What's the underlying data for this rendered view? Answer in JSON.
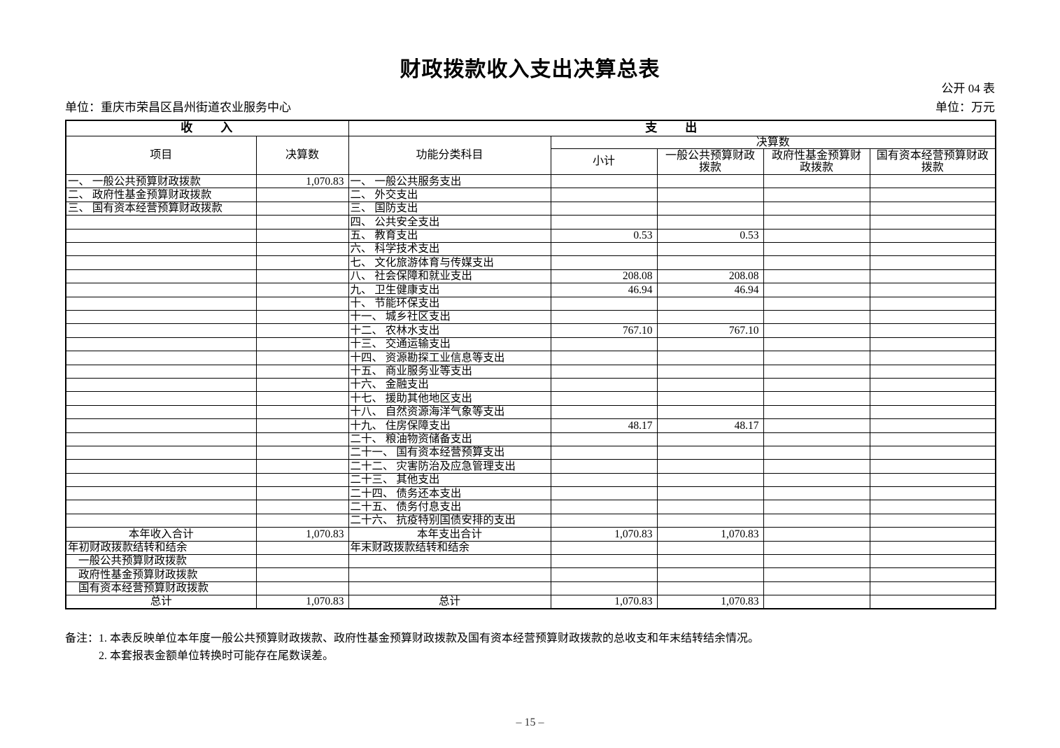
{
  "page": {
    "title": "财政拨款收入支出决算总表",
    "form_code": "公开 04 表",
    "org_unit": "单位：重庆市荣昌区昌州街道农业服务中心",
    "currency_unit": "单位：万元",
    "page_number": "– 15 –"
  },
  "table": {
    "sections": {
      "income": "收　　入",
      "expense": "支　　出"
    },
    "columns": {
      "project": "项目",
      "final_amount": "决算数",
      "functional_category": "功能分类科目",
      "final_amount_expense": "决算数",
      "subtotal": "小计",
      "general_public_budget": "一般公共预算财政拨款",
      "gov_fund_budget": "政府性基金预算财政拨款",
      "state_capital_budget": "国有资本经营预算财政拨款"
    },
    "rows": [
      {
        "income": "一、 一般公共预算财政拨款",
        "income_amount": "1,070.83",
        "expense": "一、 一般公共服务支出",
        "subtotal": "",
        "general": "",
        "gov_fund": "",
        "state_capital": ""
      },
      {
        "income": "二、 政府性基金预算财政拨款",
        "income_amount": "",
        "expense": "二、 外交支出",
        "subtotal": "",
        "general": "",
        "gov_fund": "",
        "state_capital": ""
      },
      {
        "income": "三、 国有资本经营预算财政拨款",
        "income_amount": "",
        "expense": "三、 国防支出",
        "subtotal": "",
        "general": "",
        "gov_fund": "",
        "state_capital": ""
      },
      {
        "income": "",
        "income_amount": "",
        "expense": "四、 公共安全支出",
        "subtotal": "",
        "general": "",
        "gov_fund": "",
        "state_capital": ""
      },
      {
        "income": "",
        "income_amount": "",
        "expense": "五、 教育支出",
        "subtotal": "0.53",
        "general": "0.53",
        "gov_fund": "",
        "state_capital": ""
      },
      {
        "income": "",
        "income_amount": "",
        "expense": "六、 科学技术支出",
        "subtotal": "",
        "general": "",
        "gov_fund": "",
        "state_capital": ""
      },
      {
        "income": "",
        "income_amount": "",
        "expense": "七、 文化旅游体育与传媒支出",
        "subtotal": "",
        "general": "",
        "gov_fund": "",
        "state_capital": ""
      },
      {
        "income": "",
        "income_amount": "",
        "expense": "八、 社会保障和就业支出",
        "subtotal": "208.08",
        "general": "208.08",
        "gov_fund": "",
        "state_capital": ""
      },
      {
        "income": "",
        "income_amount": "",
        "expense": "九、 卫生健康支出",
        "subtotal": "46.94",
        "general": "46.94",
        "gov_fund": "",
        "state_capital": ""
      },
      {
        "income": "",
        "income_amount": "",
        "expense": "十、 节能环保支出",
        "subtotal": "",
        "general": "",
        "gov_fund": "",
        "state_capital": ""
      },
      {
        "income": "",
        "income_amount": "",
        "expense": "十一、 城乡社区支出",
        "subtotal": "",
        "general": "",
        "gov_fund": "",
        "state_capital": ""
      },
      {
        "income": "",
        "income_amount": "",
        "expense": "十二、 农林水支出",
        "subtotal": "767.10",
        "general": "767.10",
        "gov_fund": "",
        "state_capital": ""
      },
      {
        "income": "",
        "income_amount": "",
        "expense": "十三、 交通运输支出",
        "subtotal": "",
        "general": "",
        "gov_fund": "",
        "state_capital": ""
      },
      {
        "income": "",
        "income_amount": "",
        "expense": "十四、 资源勘探工业信息等支出",
        "subtotal": "",
        "general": "",
        "gov_fund": "",
        "state_capital": ""
      },
      {
        "income": "",
        "income_amount": "",
        "expense": "十五、 商业服务业等支出",
        "subtotal": "",
        "general": "",
        "gov_fund": "",
        "state_capital": ""
      },
      {
        "income": "",
        "income_amount": "",
        "expense": "十六、 金融支出",
        "subtotal": "",
        "general": "",
        "gov_fund": "",
        "state_capital": ""
      },
      {
        "income": "",
        "income_amount": "",
        "expense": "十七、 援助其他地区支出",
        "subtotal": "",
        "general": "",
        "gov_fund": "",
        "state_capital": ""
      },
      {
        "income": "",
        "income_amount": "",
        "expense": "十八、 自然资源海洋气象等支出",
        "subtotal": "",
        "general": "",
        "gov_fund": "",
        "state_capital": ""
      },
      {
        "income": "",
        "income_amount": "",
        "expense": "十九、 住房保障支出",
        "subtotal": "48.17",
        "general": "48.17",
        "gov_fund": "",
        "state_capital": ""
      },
      {
        "income": "",
        "income_amount": "",
        "expense": "二十、 粮油物资储备支出",
        "subtotal": "",
        "general": "",
        "gov_fund": "",
        "state_capital": ""
      },
      {
        "income": "",
        "income_amount": "",
        "expense": "二十一、 国有资本经营预算支出",
        "subtotal": "",
        "general": "",
        "gov_fund": "",
        "state_capital": ""
      },
      {
        "income": "",
        "income_amount": "",
        "expense": "二十二、 灾害防治及应急管理支出",
        "subtotal": "",
        "general": "",
        "gov_fund": "",
        "state_capital": ""
      },
      {
        "income": "",
        "income_amount": "",
        "expense": "二十三、 其他支出",
        "subtotal": "",
        "general": "",
        "gov_fund": "",
        "state_capital": ""
      },
      {
        "income": "",
        "income_amount": "",
        "expense": "二十四、 债务还本支出",
        "subtotal": "",
        "general": "",
        "gov_fund": "",
        "state_capital": ""
      },
      {
        "income": "",
        "income_amount": "",
        "expense": "二十五、 债务付息支出",
        "subtotal": "",
        "general": "",
        "gov_fund": "",
        "state_capital": ""
      },
      {
        "income": "",
        "income_amount": "",
        "expense": "二十六、 抗疫特别国债安排的支出",
        "subtotal": "",
        "general": "",
        "gov_fund": "",
        "state_capital": ""
      },
      {
        "income": "本年收入合计",
        "income_align": "center",
        "income_amount": "1,070.83",
        "expense": "本年支出合计",
        "expense_align": "center",
        "subtotal": "1,070.83",
        "general": "1,070.83",
        "gov_fund": "",
        "state_capital": ""
      },
      {
        "income": "年初财政拨款结转和结余",
        "income_amount": "",
        "expense": "年末财政拨款结转和结余",
        "subtotal": "",
        "general": "",
        "gov_fund": "",
        "state_capital": ""
      },
      {
        "income": "一般公共预算财政拨款",
        "income_indent": true,
        "income_amount": "",
        "expense": "",
        "subtotal": "",
        "general": "",
        "gov_fund": "",
        "state_capital": ""
      },
      {
        "income": "政府性基金预算财政拨款",
        "income_indent": true,
        "income_amount": "",
        "expense": "",
        "subtotal": "",
        "general": "",
        "gov_fund": "",
        "state_capital": ""
      },
      {
        "income": "国有资本经营预算财政拨款",
        "income_indent": true,
        "income_amount": "",
        "expense": "",
        "subtotal": "",
        "general": "",
        "gov_fund": "",
        "state_capital": ""
      },
      {
        "income": "总计",
        "income_align": "center",
        "income_amount": "1,070.83",
        "expense": "总计",
        "expense_align": "center",
        "subtotal": "1,070.83",
        "general": "1,070.83",
        "gov_fund": "",
        "state_capital": ""
      }
    ]
  },
  "notes": {
    "label": "备注：",
    "lines": [
      "1. 本表反映单位本年度一般公共预算财政拨款、政府性基金预算财政拨款及国有资本经营预算财政拨款的总收支和年末结转结余情况。",
      "2. 本套报表金额单位转换时可能存在尾数误差。"
    ]
  }
}
